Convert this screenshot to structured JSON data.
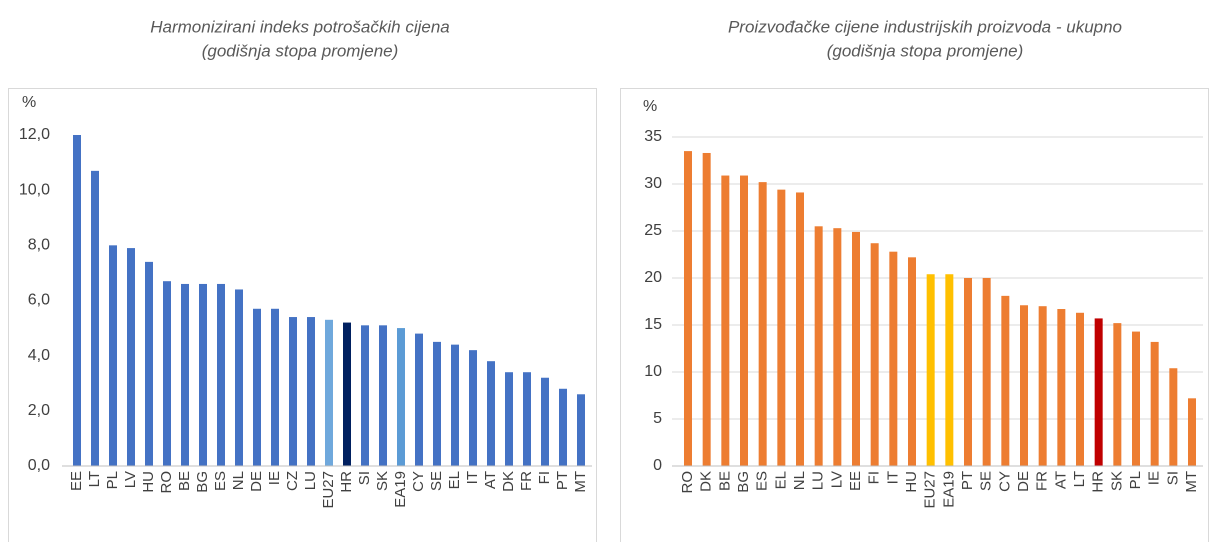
{
  "chart_data": [
    {
      "type": "bar",
      "title": "Harmonizirani indeks potrošačkih cijena",
      "subtitle": "(godišnja stopa promjene)",
      "ylabel": "%",
      "categories": [
        "EE",
        "LT",
        "PL",
        "LV",
        "HU",
        "RO",
        "BE",
        "BG",
        "ES",
        "NL",
        "DE",
        "IE",
        "CZ",
        "LU",
        "EU27",
        "HR",
        "SI",
        "SK",
        "EA19",
        "CY",
        "SE",
        "EL",
        "IT",
        "AT",
        "DK",
        "FR",
        "FI",
        "PT",
        "MT"
      ],
      "values": [
        12.0,
        10.7,
        8.0,
        7.9,
        7.4,
        6.7,
        6.6,
        6.6,
        6.6,
        6.4,
        5.7,
        5.7,
        5.4,
        5.4,
        5.3,
        5.2,
        5.1,
        5.1,
        5.0,
        4.8,
        4.5,
        4.4,
        4.2,
        3.8,
        3.4,
        3.4,
        3.2,
        2.8,
        2.6
      ],
      "colors": [
        "#4472c4",
        "#4472c4",
        "#4472c4",
        "#4472c4",
        "#4472c4",
        "#4472c4",
        "#4472c4",
        "#4472c4",
        "#4472c4",
        "#4472c4",
        "#4472c4",
        "#4472c4",
        "#4472c4",
        "#4472c4",
        "#6fa8dc",
        "#002060",
        "#4472c4",
        "#4472c4",
        "#5b9bd5",
        "#4472c4",
        "#4472c4",
        "#4472c4",
        "#4472c4",
        "#4472c4",
        "#4472c4",
        "#4472c4",
        "#4472c4",
        "#4472c4",
        "#4472c4"
      ],
      "ylim": [
        0,
        12
      ],
      "yticks": [
        {
          "value": 0,
          "label": "0,0"
        },
        {
          "value": 2,
          "label": "2,0"
        },
        {
          "value": 4,
          "label": "4,0"
        },
        {
          "value": 6,
          "label": "6,0"
        },
        {
          "value": 8,
          "label": "8,0"
        },
        {
          "value": 10,
          "label": "10,0"
        },
        {
          "value": 12,
          "label": "12,0"
        }
      ],
      "grid": false
    },
    {
      "type": "bar",
      "title": "Proizvođačke cijene industrijskih proizvoda - ukupno",
      "subtitle": "(godišnja stopa promjene)",
      "ylabel": "%",
      "categories": [
        "RO",
        "DK",
        "BE",
        "BG",
        "ES",
        "EL",
        "NL",
        "LU",
        "LV",
        "EE",
        "FI",
        "IT",
        "HU",
        "EU27",
        "EA19",
        "PT",
        "SE",
        "CY",
        "DE",
        "FR",
        "AT",
        "LT",
        "HR",
        "SK",
        "PL",
        "IE",
        "SI",
        "MT"
      ],
      "values": [
        33.5,
        33.3,
        30.9,
        30.9,
        30.2,
        29.4,
        29.1,
        25.5,
        25.3,
        24.9,
        23.7,
        22.8,
        22.2,
        20.4,
        20.4,
        20.0,
        20.0,
        18.1,
        17.1,
        17.0,
        16.7,
        16.3,
        15.7,
        15.2,
        14.3,
        13.2,
        10.4,
        7.2
      ],
      "colors": [
        "#ed7d31",
        "#ed7d31",
        "#ed7d31",
        "#ed7d31",
        "#ed7d31",
        "#ed7d31",
        "#ed7d31",
        "#ed7d31",
        "#ed7d31",
        "#ed7d31",
        "#ed7d31",
        "#ed7d31",
        "#ed7d31",
        "#ffc000",
        "#ffc000",
        "#ed7d31",
        "#ed7d31",
        "#ed7d31",
        "#ed7d31",
        "#ed7d31",
        "#ed7d31",
        "#ed7d31",
        "#c00000",
        "#ed7d31",
        "#ed7d31",
        "#ed7d31",
        "#ed7d31",
        "#ed7d31"
      ],
      "ylim": [
        0,
        35
      ],
      "yticks": [
        0,
        5,
        10,
        15,
        20,
        25,
        30,
        35
      ],
      "grid": true
    }
  ]
}
